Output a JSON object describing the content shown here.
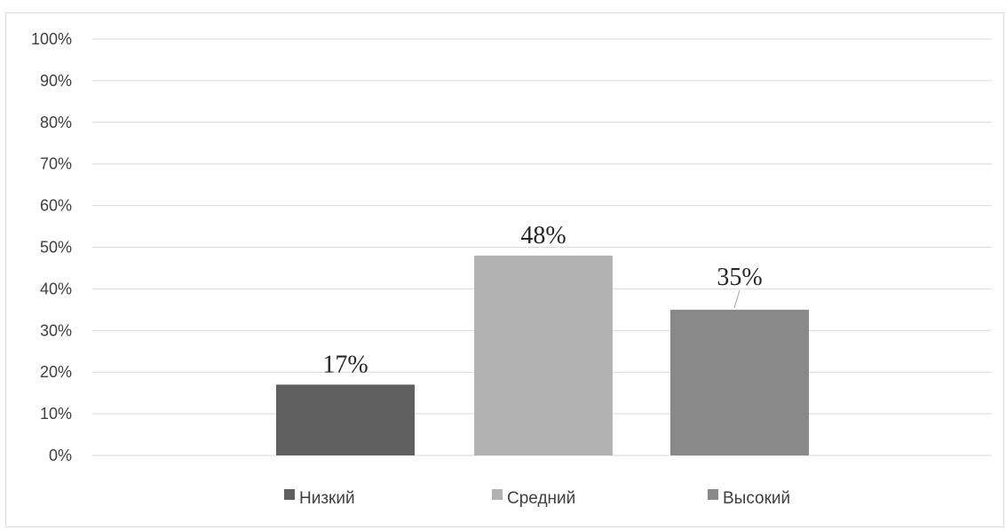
{
  "chart_data": {
    "type": "bar",
    "title": "",
    "xlabel": "",
    "ylabel": "",
    "categories": [
      "Низкий",
      "Средний",
      "Высокий"
    ],
    "series": [
      {
        "name": "Низкий",
        "values": [
          17,
          null,
          null
        ],
        "color": "#5f5f5f"
      },
      {
        "name": "Средний",
        "values": [
          null,
          48,
          null
        ],
        "color": "#b2b2b2"
      },
      {
        "name": "Высокий",
        "values": [
          null,
          null,
          35
        ],
        "color": "#898989"
      }
    ],
    "values": [
      17,
      48,
      35
    ],
    "data_labels": [
      "17%",
      "48%",
      "35%"
    ],
    "colors": [
      "#5f5f5f",
      "#b2b2b2",
      "#898989"
    ],
    "ylim": [
      0,
      100
    ],
    "yticks": [
      "0%",
      "10%",
      "20%",
      "30%",
      "40%",
      "50%",
      "60%",
      "70%",
      "80%",
      "90%",
      "100%"
    ],
    "grid": true,
    "gridline_color": "#d9d9d9",
    "legend_position": "bottom",
    "legend": [
      "Низкий",
      "Средний",
      "Высокий"
    ]
  }
}
